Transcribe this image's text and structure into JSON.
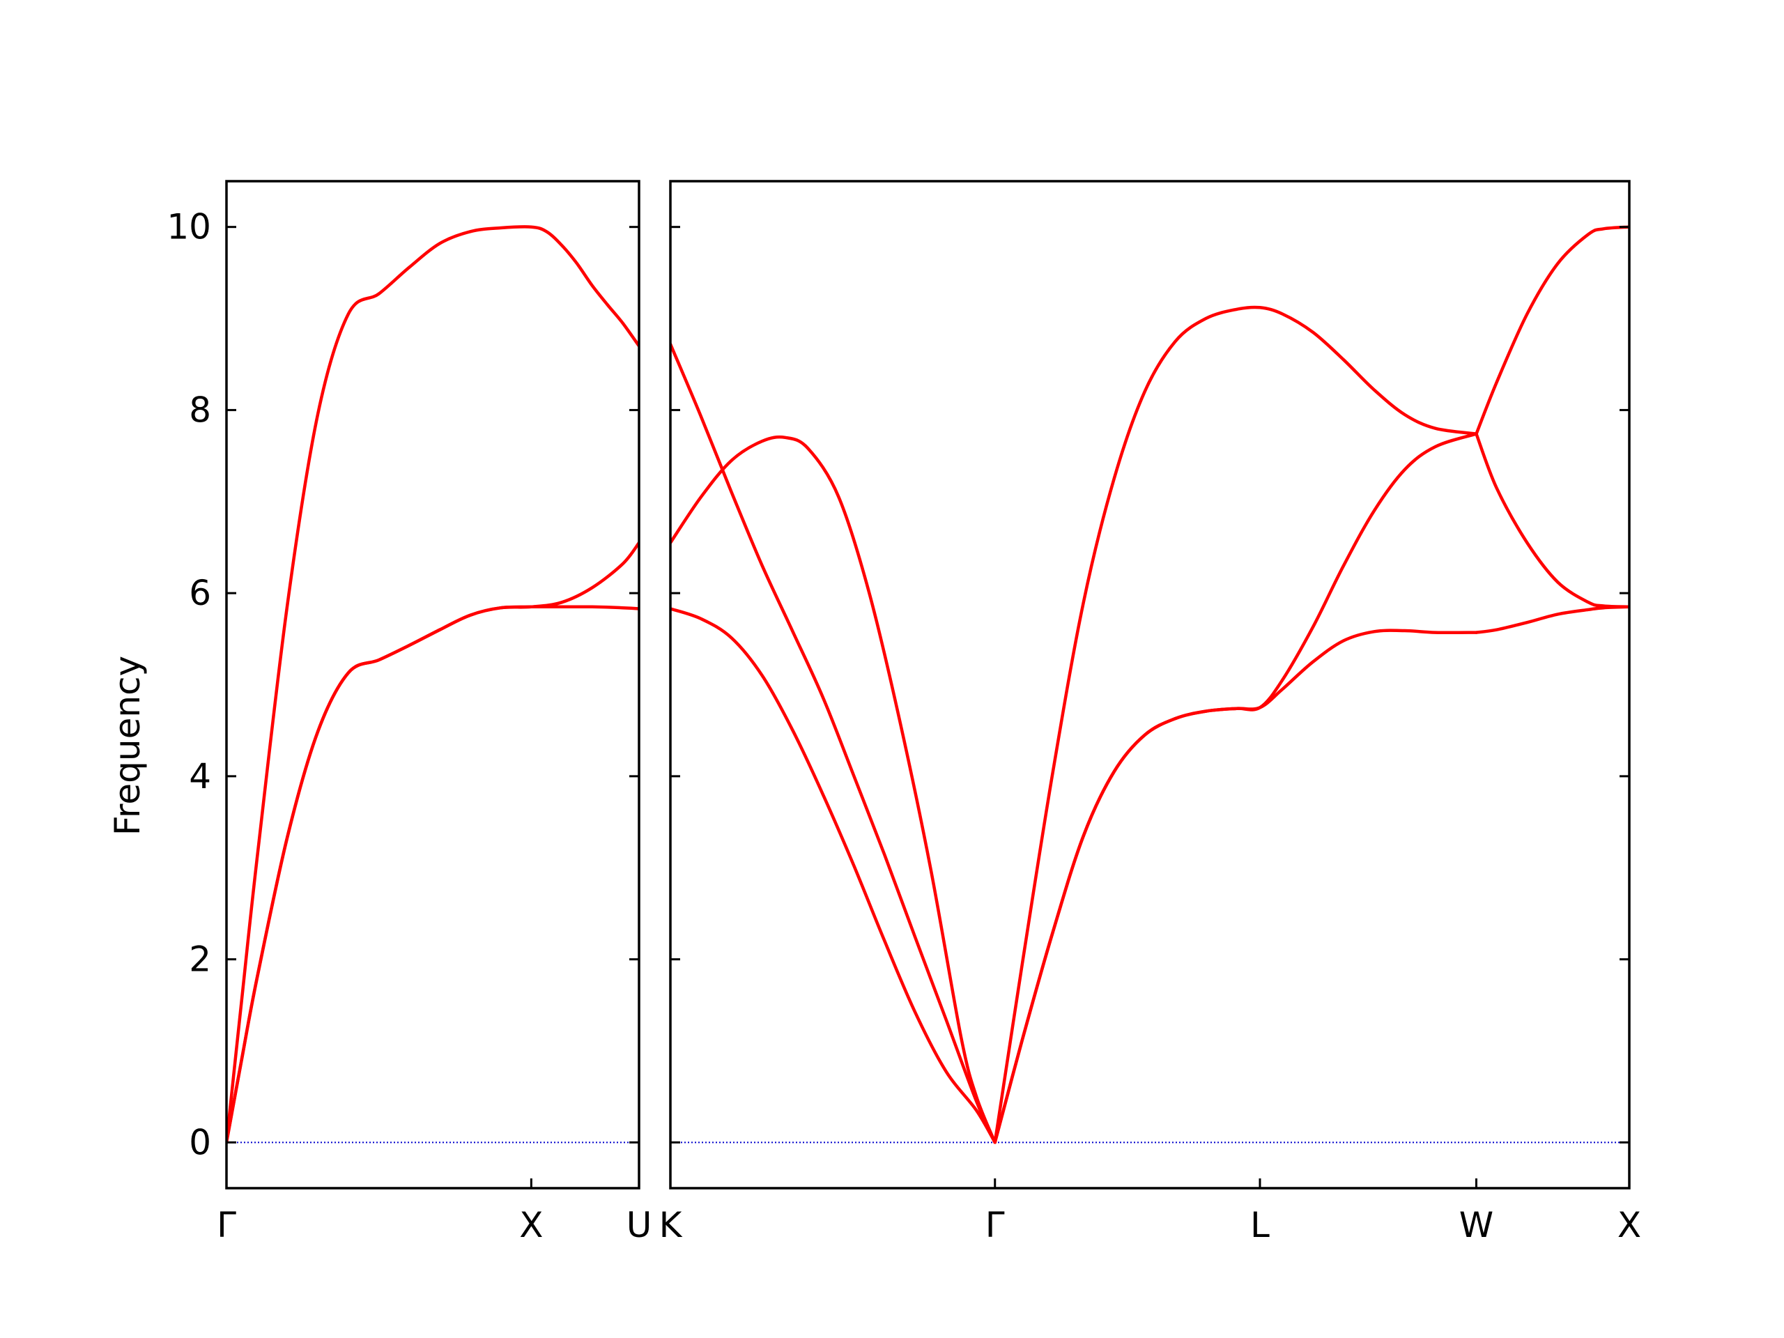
{
  "chart_data": {
    "type": "line",
    "title": "",
    "ylabel": "Frequency",
    "ylim": [
      -0.5,
      10.5
    ],
    "yticks": [
      0,
      2,
      4,
      6,
      8,
      10
    ],
    "grid": false,
    "legend": "none",
    "line_color": "#ff0000",
    "zero_line_color": "#0000cc",
    "frame_color": "#000000",
    "panels": [
      {
        "name": "left",
        "x_range": [
          0,
          1.3536
        ],
        "xticks": [
          {
            "x": 0,
            "label": "Γ"
          },
          {
            "x": 1.0,
            "label": "X"
          },
          {
            "x": 1.3536,
            "label": "U"
          }
        ],
        "series": [
          {
            "x": [
              0,
              0.05,
              0.1,
              0.2,
              0.3,
              0.4,
              0.5,
              0.6,
              0.7,
              0.8,
              0.9,
              1.0,
              1.05,
              1.1,
              1.15,
              1.2,
              1.25,
              1.3,
              1.3536
            ],
            "y": [
              0,
              1.56,
              3.09,
              5.88,
              7.96,
              9.05,
              9.27,
              9.56,
              9.82,
              9.95,
              9.99,
              10.0,
              9.95,
              9.8,
              9.6,
              9.36,
              9.15,
              8.95,
              8.7
            ]
          },
          {
            "x": [
              0,
              0.05,
              0.1,
              0.2,
              0.3,
              0.4,
              0.5,
              0.6,
              0.7,
              0.8,
              0.9,
              1.0,
              1.1,
              1.2,
              1.3,
              1.3536
            ],
            "y": [
              0,
              0.91,
              1.79,
              3.34,
              4.49,
              5.13,
              5.27,
              5.43,
              5.6,
              5.76,
              5.84,
              5.85,
              5.9,
              6.06,
              6.32,
              6.55
            ]
          },
          {
            "x": [
              0,
              0.05,
              0.1,
              0.2,
              0.3,
              0.4,
              0.5,
              0.6,
              0.7,
              0.8,
              0.9,
              1.0,
              1.1,
              1.2,
              1.3,
              1.3536
            ],
            "y": [
              0,
              0.91,
              1.79,
              3.34,
              4.49,
              5.13,
              5.27,
              5.43,
              5.6,
              5.76,
              5.84,
              5.85,
              5.85,
              5.85,
              5.84,
              5.83
            ]
          }
        ]
      },
      {
        "name": "right",
        "x_range": [
          0,
          3.9391
        ],
        "xticks": [
          {
            "x": 0,
            "label": "K"
          },
          {
            "x": 1.0607,
            "label": "Γ"
          },
          {
            "x": 1.9267,
            "label": "L"
          },
          {
            "x": 2.6338,
            "label": "W"
          },
          {
            "x": 3.1338,
            "label": "X"
          }
        ],
        "x_display_range": [
          0,
          3.1338
        ],
        "series": [
          {
            "x": [
              0,
              0.1,
              0.2,
              0.3,
              0.4,
              0.5,
              0.6,
              0.7,
              0.8,
              0.9,
              1.0,
              1.0607
            ],
            "y": [
              8.72,
              7.93,
              7.1,
              6.3,
              5.58,
              4.85,
              4.0,
              3.14,
              2.24,
              1.35,
              0.45,
              0
            ]
          },
          {
            "x": [
              0,
              0.1,
              0.2,
              0.3,
              0.375,
              0.45,
              0.55,
              0.65,
              0.75,
              0.85,
              0.95,
              1.0,
              1.0607
            ],
            "y": [
              6.55,
              7.05,
              7.45,
              7.66,
              7.7,
              7.58,
              7.05,
              6.0,
              4.6,
              3.0,
              1.15,
              0.5,
              0
            ]
          },
          {
            "x": [
              0,
              0.1,
              0.2,
              0.3,
              0.4,
              0.5,
              0.6,
              0.7,
              0.8,
              0.9,
              1.0,
              1.0607
            ],
            "y": [
              5.83,
              5.72,
              5.51,
              5.1,
              4.5,
              3.79,
              3.02,
              2.2,
              1.42,
              0.78,
              0.35,
              0
            ]
          },
          {
            "x": [
              1.0607,
              1.15,
              1.25,
              1.35,
              1.45,
              1.55,
              1.65,
              1.75,
              1.85,
              1.9267,
              2.0,
              2.1,
              2.2,
              2.3,
              2.4,
              2.5,
              2.6338
            ],
            "y": [
              0,
              1.95,
              4.05,
              5.9,
              7.25,
              8.2,
              8.75,
              9.0,
              9.1,
              9.12,
              9.05,
              8.85,
              8.55,
              8.22,
              7.95,
              7.8,
              7.74
            ]
          },
          {
            "x": [
              1.0607,
              1.15,
              1.25,
              1.35,
              1.45,
              1.55,
              1.65,
              1.75,
              1.85,
              1.9267,
              2.0,
              2.1,
              2.2,
              2.3,
              2.4,
              2.5,
              2.6338
            ],
            "y": [
              0,
              1.12,
              2.3,
              3.35,
              4.05,
              4.45,
              4.63,
              4.71,
              4.74,
              4.75,
              5.05,
              5.63,
              6.3,
              6.9,
              7.35,
              7.6,
              7.74
            ]
          },
          {
            "x": [
              1.0607,
              1.15,
              1.25,
              1.35,
              1.45,
              1.55,
              1.65,
              1.75,
              1.85,
              1.9267,
              2.0,
              2.1,
              2.2,
              2.3,
              2.4,
              2.5,
              2.6338
            ],
            "y": [
              0,
              1.12,
              2.3,
              3.35,
              4.05,
              4.45,
              4.63,
              4.71,
              4.74,
              4.75,
              4.95,
              5.25,
              5.48,
              5.58,
              5.59,
              5.57,
              5.57
            ]
          },
          {
            "x": [
              2.6338,
              2.7,
              2.8,
              2.9,
              3.0,
              3.05,
              3.1338
            ],
            "y": [
              7.74,
              8.3,
              9.05,
              9.6,
              9.92,
              9.98,
              10.0
            ]
          },
          {
            "x": [
              2.6338,
              2.7,
              2.8,
              2.9,
              3.0,
              3.05,
              3.1338
            ],
            "y": [
              7.74,
              7.15,
              6.55,
              6.12,
              5.9,
              5.86,
              5.85
            ]
          },
          {
            "x": [
              2.6338,
              2.7,
              2.8,
              2.9,
              3.0,
              3.05,
              3.1338
            ],
            "y": [
              5.57,
              5.6,
              5.68,
              5.77,
              5.82,
              5.84,
              5.85
            ]
          }
        ]
      }
    ]
  }
}
